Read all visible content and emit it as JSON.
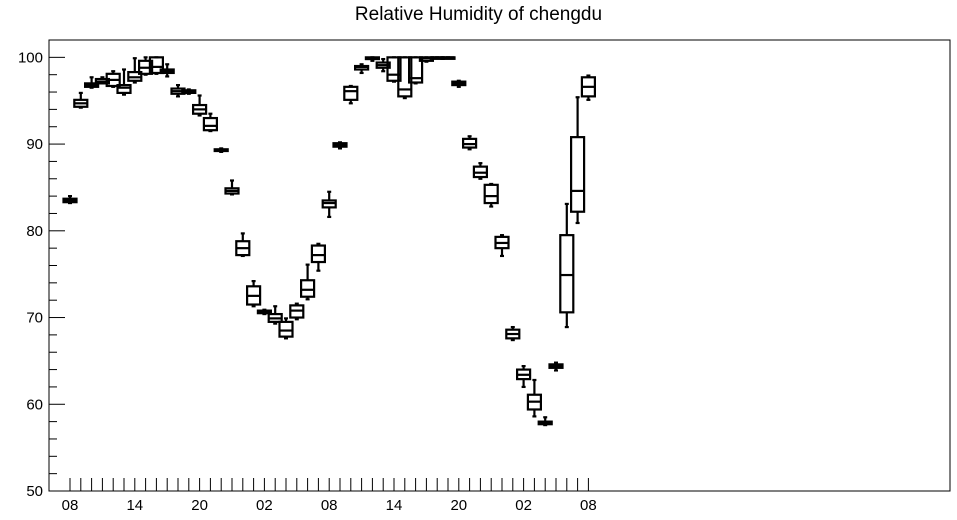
{
  "chart_data": {
    "type": "box",
    "title": "Relative Humidity of chengdu",
    "xlabel": "",
    "ylabel": "",
    "ylim": [
      50,
      102
    ],
    "y_ticks": [
      50,
      60,
      70,
      80,
      90,
      100
    ],
    "x_tick_labels": [
      "08",
      "14",
      "20",
      "02",
      "08",
      "14",
      "20",
      "02",
      "08"
    ],
    "x_tick_hours": [
      0,
      6,
      12,
      18,
      24,
      30,
      36,
      42,
      48
    ],
    "grid": false,
    "boxes": [
      {
        "hour": 0,
        "min": 83.2,
        "q1": 83.3,
        "median": 83.5,
        "q3": 83.7,
        "max": 84.0
      },
      {
        "hour": 1,
        "min": 94.2,
        "q1": 94.3,
        "median": 94.7,
        "q3": 95.1,
        "max": 95.9
      },
      {
        "hour": 2,
        "min": 96.5,
        "q1": 96.6,
        "median": 96.8,
        "q3": 97.0,
        "max": 97.7
      },
      {
        "hour": 3,
        "min": 97.0,
        "q1": 97.0,
        "median": 97.2,
        "q3": 97.5,
        "max": 97.7
      },
      {
        "hour": 4,
        "min": 96.6,
        "q1": 96.7,
        "median": 97.4,
        "q3": 98.1,
        "max": 98.4
      },
      {
        "hour": 5,
        "min": 95.7,
        "q1": 95.9,
        "median": 96.5,
        "q3": 96.8,
        "max": 98.6
      },
      {
        "hour": 6,
        "min": 97.1,
        "q1": 97.3,
        "median": 97.7,
        "q3": 98.3,
        "max": 99.9
      },
      {
        "hour": 7,
        "min": 98.0,
        "q1": 98.1,
        "median": 98.8,
        "q3": 99.6,
        "max": 100.0
      },
      {
        "hour": 8,
        "min": 98.1,
        "q1": 98.2,
        "median": 98.9,
        "q3": 100.0,
        "max": 100.0
      },
      {
        "hour": 9,
        "min": 97.8,
        "q1": 98.2,
        "median": 98.4,
        "q3": 98.6,
        "max": 99.2
      },
      {
        "hour": 10,
        "min": 95.5,
        "q1": 95.8,
        "median": 96.1,
        "q3": 96.4,
        "max": 96.8
      },
      {
        "hour": 11,
        "min": 95.8,
        "q1": 95.9,
        "median": 96.0,
        "q3": 96.2,
        "max": 96.3
      },
      {
        "hour": 12,
        "min": 93.3,
        "q1": 93.5,
        "median": 94.0,
        "q3": 94.5,
        "max": 95.6
      },
      {
        "hour": 13,
        "min": 91.5,
        "q1": 91.6,
        "median": 92.1,
        "q3": 93.0,
        "max": 93.5
      },
      {
        "hour": 14,
        "min": 89.1,
        "q1": 89.2,
        "median": 89.3,
        "q3": 89.4,
        "max": 89.5
      },
      {
        "hour": 15,
        "min": 84.2,
        "q1": 84.3,
        "median": 84.6,
        "q3": 84.9,
        "max": 85.8
      },
      {
        "hour": 16,
        "min": 77.1,
        "q1": 77.2,
        "median": 78.0,
        "q3": 78.8,
        "max": 79.7
      },
      {
        "hour": 17,
        "min": 71.3,
        "q1": 71.5,
        "median": 72.5,
        "q3": 73.6,
        "max": 74.2
      },
      {
        "hour": 18,
        "min": 70.4,
        "q1": 70.5,
        "median": 70.7,
        "q3": 70.8,
        "max": 70.9
      },
      {
        "hour": 19,
        "min": 69.3,
        "q1": 69.5,
        "median": 69.9,
        "q3": 70.4,
        "max": 71.3
      },
      {
        "hour": 20,
        "min": 67.6,
        "q1": 67.8,
        "median": 68.5,
        "q3": 69.5,
        "max": 69.9
      },
      {
        "hour": 21,
        "min": 69.8,
        "q1": 70.0,
        "median": 70.8,
        "q3": 71.4,
        "max": 71.6
      },
      {
        "hour": 22,
        "min": 72.1,
        "q1": 72.4,
        "median": 73.2,
        "q3": 74.3,
        "max": 76.1
      },
      {
        "hour": 23,
        "min": 75.4,
        "q1": 76.4,
        "median": 77.2,
        "q3": 78.3,
        "max": 78.5
      },
      {
        "hour": 24,
        "min": 81.6,
        "q1": 82.7,
        "median": 83.2,
        "q3": 83.5,
        "max": 84.5
      },
      {
        "hour": 25,
        "min": 89.5,
        "q1": 89.7,
        "median": 89.9,
        "q3": 90.1,
        "max": 90.2
      },
      {
        "hour": 26,
        "min": 94.7,
        "q1": 95.1,
        "median": 96.1,
        "q3": 96.6,
        "max": 96.7
      },
      {
        "hour": 27,
        "min": 98.2,
        "q1": 98.6,
        "median": 98.9,
        "q3": 99.0,
        "max": 99.2
      },
      {
        "hour": 28,
        "min": 99.6,
        "q1": 99.8,
        "median": 99.9,
        "q3": 100.0,
        "max": 100.0
      },
      {
        "hour": 29,
        "min": 98.4,
        "q1": 98.8,
        "median": 99.1,
        "q3": 99.4,
        "max": 99.8
      },
      {
        "hour": 30,
        "min": 97.2,
        "q1": 97.3,
        "median": 98.0,
        "q3": 100.0,
        "max": 100.0
      },
      {
        "hour": 31,
        "min": 95.3,
        "q1": 95.5,
        "median": 96.3,
        "q3": 100.0,
        "max": 100.0
      },
      {
        "hour": 32,
        "min": 97.0,
        "q1": 97.1,
        "median": 97.6,
        "q3": 100.0,
        "max": 100.0
      },
      {
        "hour": 33,
        "min": 99.5,
        "q1": 99.6,
        "median": 99.9,
        "q3": 100.0,
        "max": 100.0
      },
      {
        "hour": 34,
        "min": 99.9,
        "q1": 100.0,
        "median": 100.0,
        "q3": 100.0,
        "max": 100.0
      },
      {
        "hour": 35,
        "min": 99.9,
        "q1": 100.0,
        "median": 100.0,
        "q3": 100.0,
        "max": 100.0
      },
      {
        "hour": 36,
        "min": 96.6,
        "q1": 96.8,
        "median": 97.0,
        "q3": 97.2,
        "max": 97.3
      },
      {
        "hour": 37,
        "min": 89.4,
        "q1": 89.6,
        "median": 90.0,
        "q3": 90.6,
        "max": 90.9
      },
      {
        "hour": 38,
        "min": 86.0,
        "q1": 86.2,
        "median": 86.7,
        "q3": 87.4,
        "max": 87.8
      },
      {
        "hour": 39,
        "min": 82.8,
        "q1": 83.2,
        "median": 84.0,
        "q3": 85.3,
        "max": 85.4
      },
      {
        "hour": 40,
        "min": 77.1,
        "q1": 78.0,
        "median": 78.6,
        "q3": 79.3,
        "max": 79.5
      },
      {
        "hour": 41,
        "min": 67.4,
        "q1": 67.6,
        "median": 68.1,
        "q3": 68.6,
        "max": 68.9
      },
      {
        "hour": 42,
        "min": 62.0,
        "q1": 62.9,
        "median": 63.4,
        "q3": 64.0,
        "max": 64.4
      },
      {
        "hour": 43,
        "min": 58.6,
        "q1": 59.4,
        "median": 60.3,
        "q3": 61.1,
        "max": 62.8
      },
      {
        "hour": 44,
        "min": 57.6,
        "q1": 57.7,
        "median": 57.9,
        "q3": 58.0,
        "max": 58.5
      },
      {
        "hour": 45,
        "min": 63.9,
        "q1": 64.2,
        "median": 64.4,
        "q3": 64.6,
        "max": 64.8
      },
      {
        "hour": 46,
        "min": 68.9,
        "q1": 70.6,
        "median": 74.9,
        "q3": 79.5,
        "max": 83.1
      },
      {
        "hour": 47,
        "min": 80.9,
        "q1": 82.2,
        "median": 84.6,
        "q3": 90.8,
        "max": 95.4
      },
      {
        "hour": 48,
        "min": 95.1,
        "q1": 95.5,
        "median": 96.6,
        "q3": 97.7,
        "max": 97.9
      }
    ]
  }
}
